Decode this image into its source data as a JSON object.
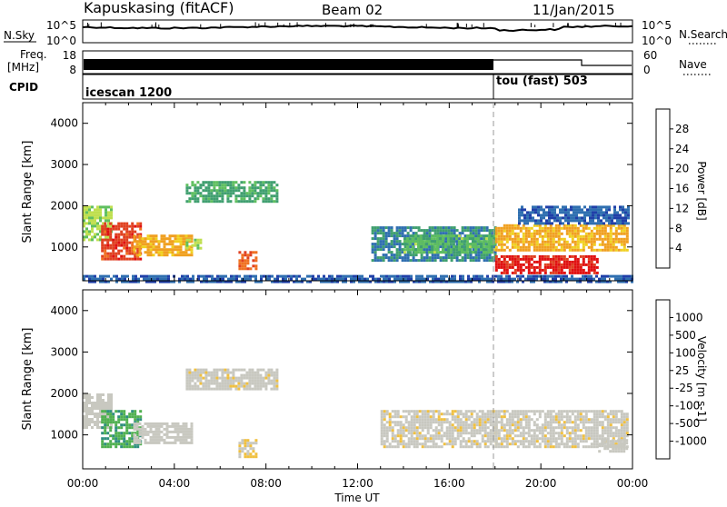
{
  "header": {
    "station": "Kapuskasing (fitACF)",
    "beam": "Beam 02",
    "date": "11/Jan/2015"
  },
  "noise_panel": {
    "left_label": "N.Sky",
    "right_label": "N.Search",
    "left_ticks": [
      "10^5",
      "10^0"
    ],
    "right_ticks": [
      "10^5",
      "10^0"
    ]
  },
  "freq_panel": {
    "left_label_1": "Freq.",
    "left_label_2": "[MHz]",
    "left_ticks": [
      "18",
      "8"
    ],
    "right_label": "Nave",
    "right_ticks": [
      "60",
      "0"
    ]
  },
  "cpid_panel": {
    "label": "CPID",
    "modes": [
      {
        "name": "icescan 1200",
        "start_hour": 0
      },
      {
        "name": "tou (fast) 503",
        "start_hour": 18
      }
    ]
  },
  "power_panel": {
    "ylabel": "Slant Range [km]",
    "yticks": [
      "4000",
      "3000",
      "2000",
      "1000"
    ],
    "colorbar_label": "Power [dB]",
    "colorbar_ticks": [
      "28",
      "24",
      "20",
      "16",
      "12",
      "8",
      "4"
    ],
    "colors": [
      "#1f1fd8",
      "#1f3fa8",
      "#2f6fb0",
      "#3f9f6f",
      "#5fbf5f",
      "#bfdf4f",
      "#f0d020",
      "#f0a020",
      "#f07020",
      "#e04020",
      "#e01010"
    ]
  },
  "velocity_panel": {
    "ylabel": "Slant Range [km]",
    "yticks": [
      "4000",
      "3000",
      "2000",
      "1000"
    ],
    "colorbar_label": "Velocity [m s-1]",
    "colorbar_ticks": [
      "1000",
      "500",
      "100",
      "25",
      "-25",
      "-100",
      "-500",
      "-1000"
    ],
    "colors": [
      "#1f2fc8",
      "#1f4fa8",
      "#2f8f7f",
      "#4fb04f",
      "#c8c8c0",
      "#c8c8c0",
      "#f0c040",
      "#f0a020",
      "#f07010",
      "#e83010",
      "#e00000"
    ]
  },
  "xaxis": {
    "label": "Time UT",
    "ticks": [
      "00:00",
      "04:00",
      "08:00",
      "12:00",
      "16:00",
      "20:00",
      "00:00"
    ]
  },
  "chart_data": [
    {
      "type": "heatmap",
      "title": "Power [dB]",
      "xlabel": "",
      "ylabel": "Slant Range [km]",
      "xlim_hours": [
        0,
        24
      ],
      "ylim": [
        180,
        4500
      ],
      "clim": [
        0,
        30
      ],
      "regions": [
        {
          "t": [
            0.0,
            1.2
          ],
          "r": [
            1200,
            2000
          ],
          "value": 14
        },
        {
          "t": [
            0.8,
            2.5
          ],
          "r": [
            700,
            1600
          ],
          "value": 26
        },
        {
          "t": [
            2.2,
            4.8
          ],
          "r": [
            800,
            1300
          ],
          "value": 20
        },
        {
          "t": [
            4.5,
            5.2
          ],
          "r": [
            1000,
            1200
          ],
          "value": 14
        },
        {
          "t": [
            6.8,
            7.6
          ],
          "r": [
            500,
            900
          ],
          "value": 24
        },
        {
          "t": [
            4.5,
            8.5
          ],
          "r": [
            2100,
            2600
          ],
          "value": 10
        },
        {
          "t": [
            12.6,
            18.0
          ],
          "r": [
            700,
            1500
          ],
          "value": 8
        },
        {
          "t": [
            14.0,
            18.0
          ],
          "r": [
            900,
            1300
          ],
          "value": 12
        },
        {
          "t": [
            18.0,
            23.8
          ],
          "r": [
            950,
            1550
          ],
          "value": 20
        },
        {
          "t": [
            18.0,
            22.5
          ],
          "r": [
            400,
            800
          ],
          "value": 28
        },
        {
          "t": [
            19.0,
            23.8
          ],
          "r": [
            1600,
            2000
          ],
          "value": 6
        },
        {
          "t": [
            0.0,
            24.0
          ],
          "r": [
            180,
            320
          ],
          "value": 6
        }
      ]
    },
    {
      "type": "heatmap",
      "title": "Velocity [m s-1]",
      "xlabel": "Time UT",
      "ylabel": "Slant Range [km]",
      "xlim_hours": [
        0,
        24
      ],
      "ylim": [
        180,
        4500
      ],
      "clim": [
        -1000,
        1000
      ],
      "regions": [
        {
          "t": [
            0.0,
            1.2
          ],
          "r": [
            1200,
            2000
          ],
          "value": -80
        },
        {
          "t": [
            0.8,
            2.5
          ],
          "r": [
            700,
            1600
          ],
          "value": -400
        },
        {
          "t": [
            2.2,
            4.8
          ],
          "r": [
            800,
            1300
          ],
          "value": -150
        },
        {
          "t": [
            6.8,
            7.6
          ],
          "r": [
            500,
            900
          ],
          "value": 120
        },
        {
          "t": [
            4.5,
            8.5
          ],
          "r": [
            2100,
            2600
          ],
          "value": 0
        },
        {
          "t": [
            13.0,
            18.0
          ],
          "r": [
            700,
            1600
          ],
          "value": 0
        },
        {
          "t": [
            18.0,
            23.8
          ],
          "r": [
            700,
            1600
          ],
          "value": 0
        },
        {
          "t": [
            22.5,
            23.8
          ],
          "r": [
            600,
            900
          ],
          "value": -100
        }
      ]
    }
  ]
}
